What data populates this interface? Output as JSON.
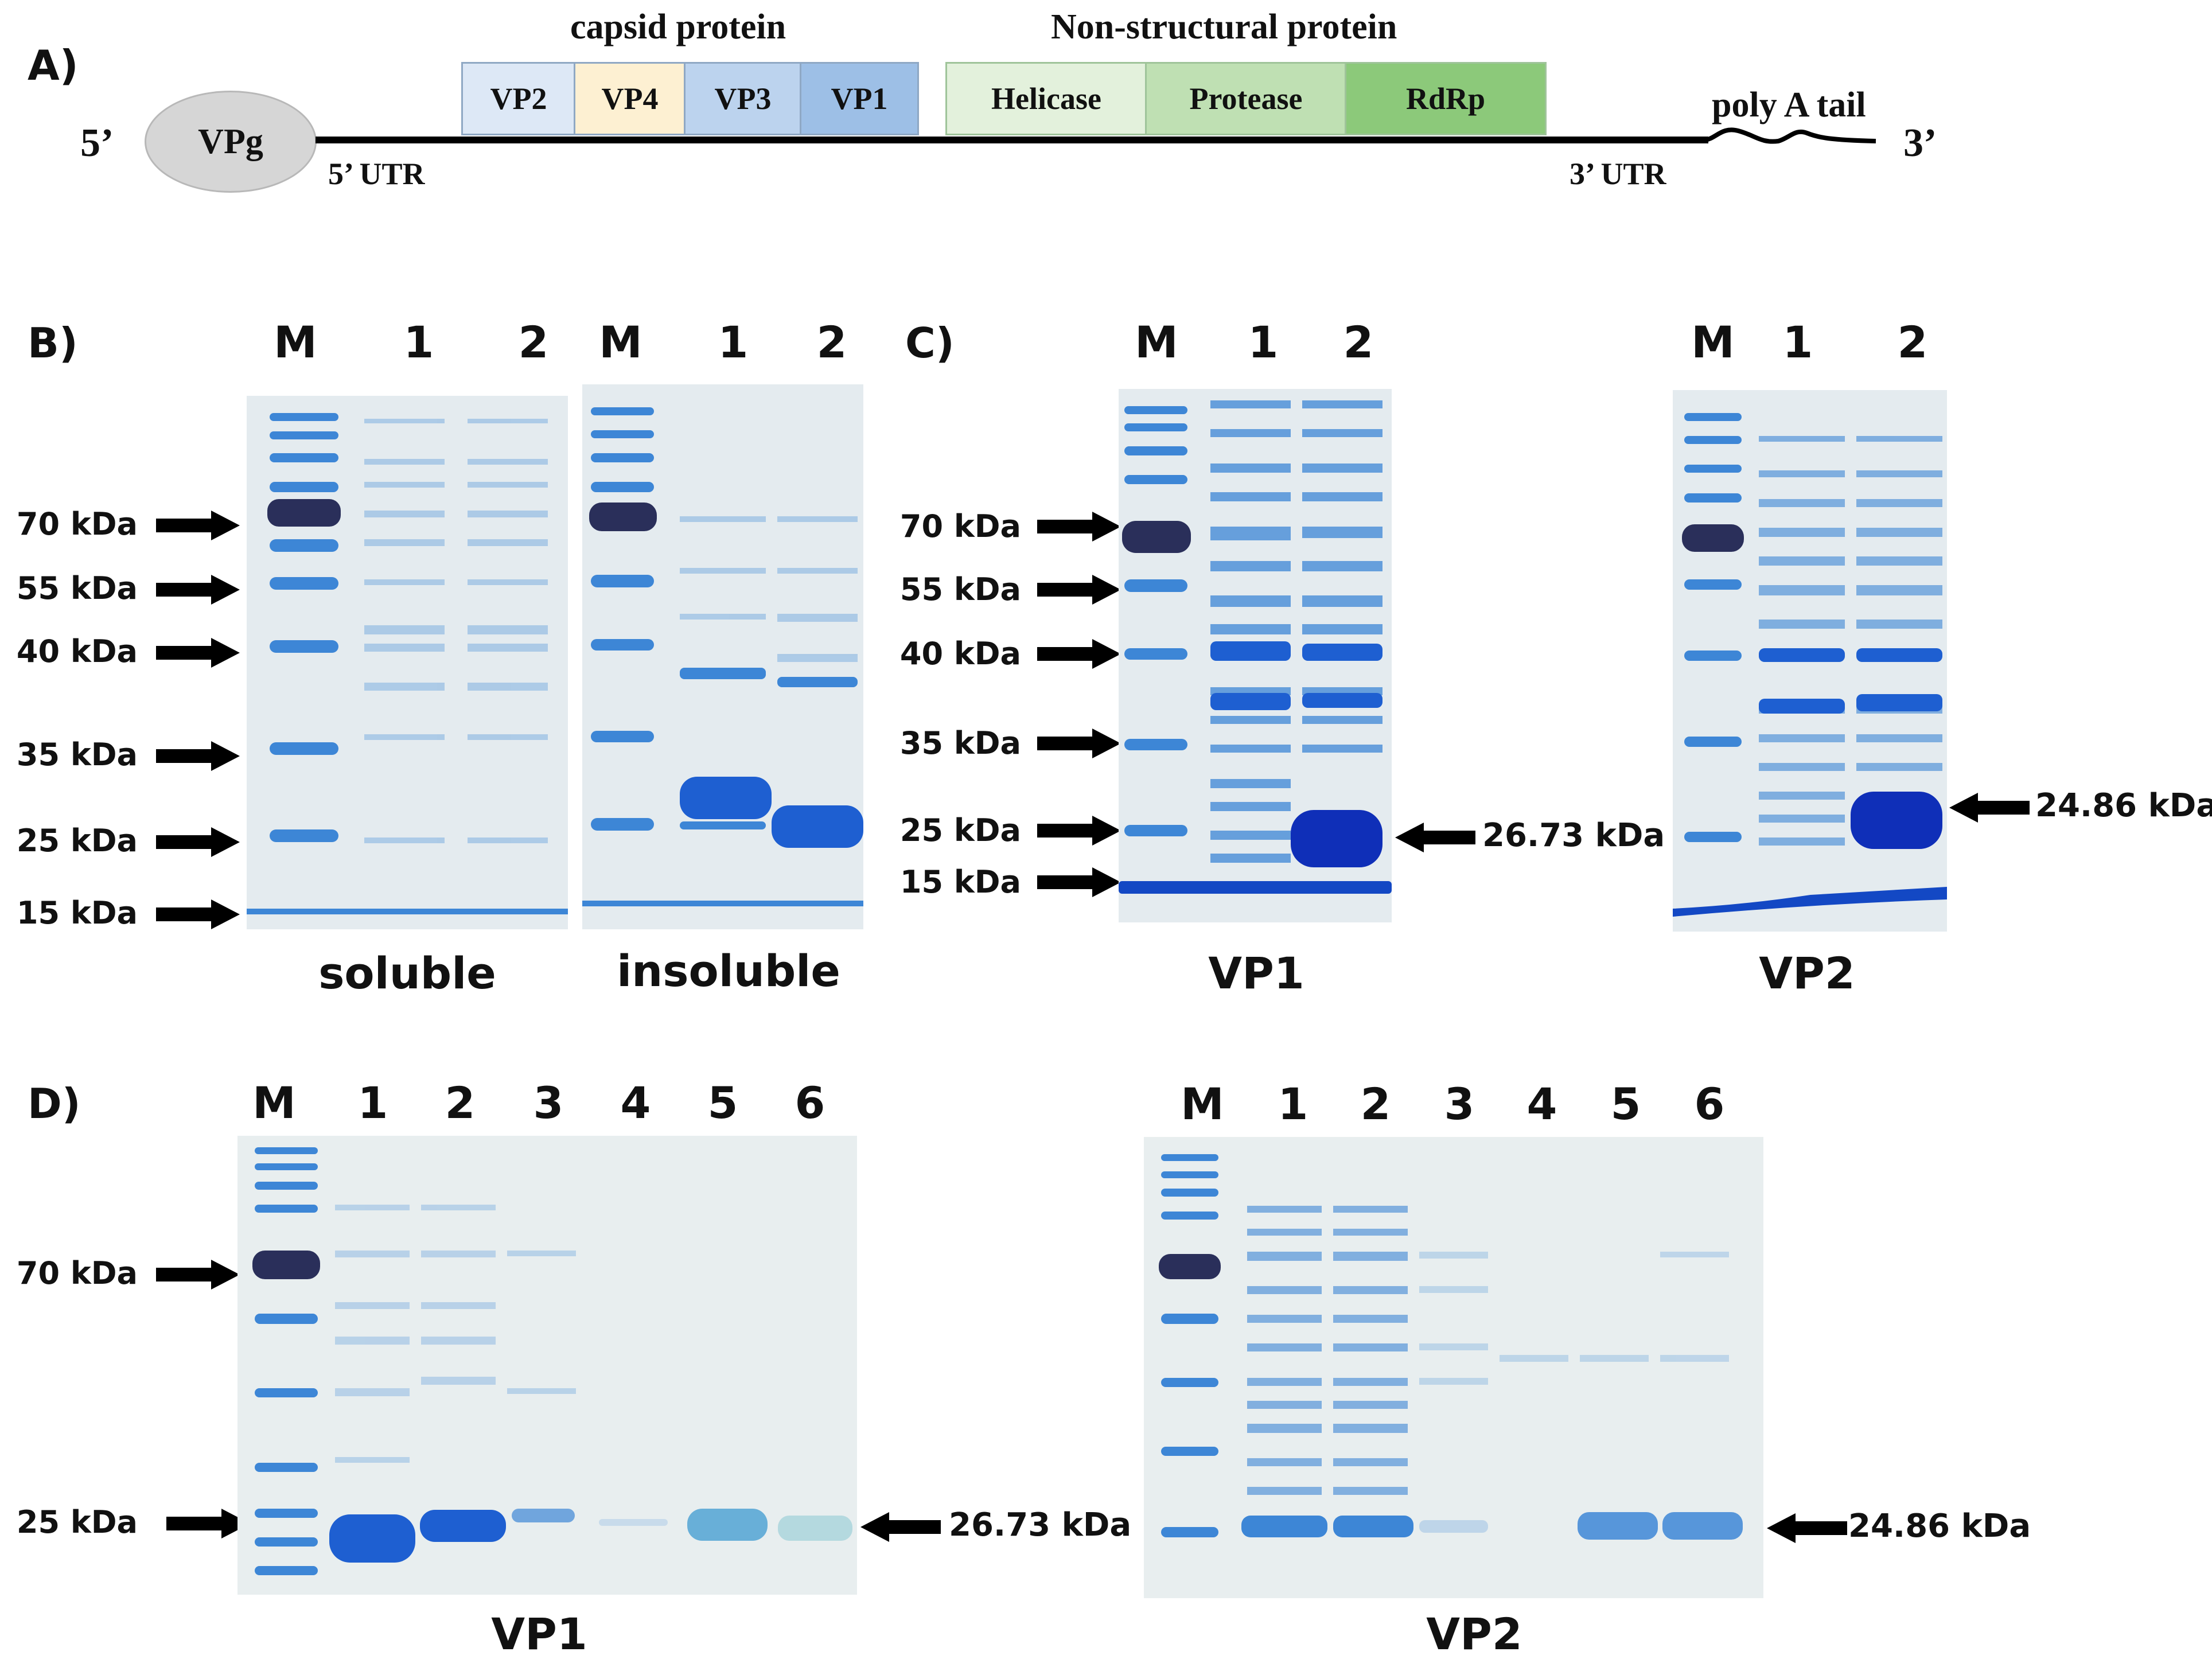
{
  "panels": {
    "A": "A)",
    "B": "B)",
    "C": "C)",
    "D": "D)"
  },
  "genome": {
    "five_prime": "5’",
    "three_prime": "3’",
    "vpg": "VPg",
    "utr5": "5’ UTR",
    "utr3": "3’ UTR",
    "polya": "poly A tail",
    "capsid_title": "capsid protein",
    "ns_title": "Non-structural protein",
    "capsid": [
      "VP2",
      "VP4",
      "VP3",
      "VP1"
    ],
    "nonstructural": [
      "Helicase",
      "Protease",
      "RdRp"
    ],
    "colors": {
      "VP2": "#dde8f6",
      "VP4": "#fdf0d2",
      "VP3": "#bcd3ee",
      "VP1": "#9dbfe6",
      "Helicase": "#e3f1dc",
      "Protease": "#bfe0b3",
      "RdRp": "#8cc97a",
      "VPg": "#d6d6d6"
    }
  },
  "panelB": {
    "lanes_soluble": [
      "M",
      "1",
      "2"
    ],
    "lanes_insoluble": [
      "M",
      "1",
      "2"
    ],
    "markers": [
      "70 kDa",
      "55 kDa",
      "40 kDa",
      "35 kDa",
      "25 kDa",
      "15 kDa"
    ],
    "captions": [
      "soluble",
      "insoluble"
    ]
  },
  "panelC": {
    "lanes_vp1": [
      "M",
      "1",
      "2"
    ],
    "lanes_vp2": [
      "M",
      "1",
      "2"
    ],
    "markers": [
      "70 kDa",
      "55 kDa",
      "40 kDa",
      "35 kDa",
      "25 kDa",
      "15 kDa"
    ],
    "vp1_band": "26.73 kDa",
    "vp2_band": "24.86 kDa",
    "captions": [
      "VP1",
      "VP2"
    ]
  },
  "panelD": {
    "lanes_vp1": [
      "M",
      "1",
      "2",
      "3",
      "4",
      "5",
      "6"
    ],
    "lanes_vp2": [
      "M",
      "1",
      "2",
      "3",
      "4",
      "5",
      "6"
    ],
    "markers": [
      "70 kDa",
      "25 kDa"
    ],
    "vp1_band": "26.73 kDa",
    "vp2_band": "24.86 kDa",
    "captions": [
      "VP1",
      "VP2"
    ]
  },
  "gel_colors": {
    "background": "#e6ecef",
    "band": "#3d86d6",
    "band_strong": "#1348c4",
    "marker_dark": "#2a2f5a"
  }
}
